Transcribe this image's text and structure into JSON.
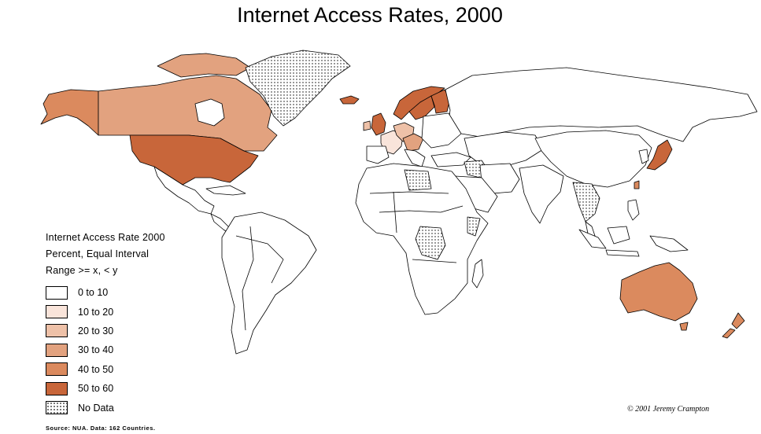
{
  "title": "Internet Access Rates, 2000",
  "legend": {
    "title": "Internet Access Rate 2000",
    "subtitle": "Percent, Equal Interval",
    "range_note": "Range  >= x, < y",
    "items": [
      {
        "label": "0 to 10",
        "color": "#ffffff"
      },
      {
        "label": "10 to 20",
        "color": "#f9e4da"
      },
      {
        "label": "20 to 30",
        "color": "#eec1a8"
      },
      {
        "label": "30 to 40",
        "color": "#e2a27f"
      },
      {
        "label": "40 to 50",
        "color": "#db8a5e"
      },
      {
        "label": "50 to 60",
        "color": "#c8663a"
      },
      {
        "label": "No Data",
        "color": "stipple"
      }
    ]
  },
  "credit": "© 2001 Jeremy Crampton",
  "source": "Source: NUA. Data: 162 Countries."
}
